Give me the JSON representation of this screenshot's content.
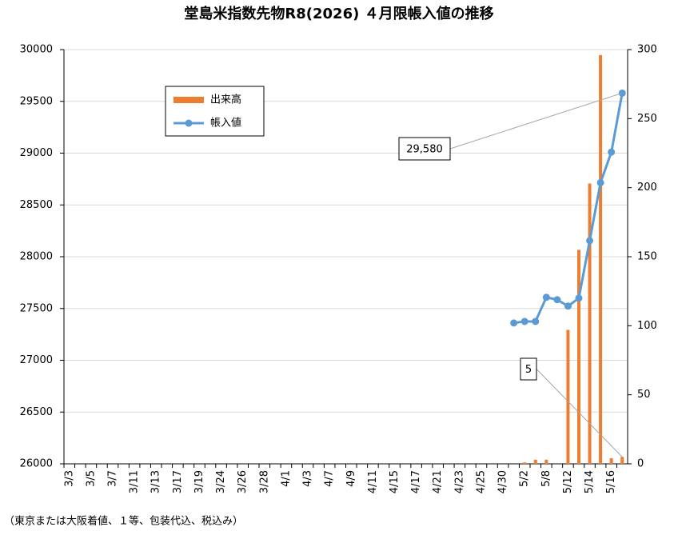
{
  "chart_data": {
    "type": "bar-line",
    "title": "堂島米指数先物R8(2026) ４月限帳入値の推移",
    "footnote": "（東京または大阪着値、１等、包装代込、税込み）",
    "categories": [
      "3/3",
      null,
      "3/5",
      null,
      "3/7",
      null,
      "3/11",
      null,
      "3/13",
      null,
      "3/17",
      null,
      "3/19",
      null,
      "3/24",
      null,
      "3/26",
      null,
      "3/28",
      null,
      "4/1",
      null,
      "4/3",
      null,
      "4/7",
      null,
      "4/9",
      null,
      "4/11",
      null,
      "4/15",
      null,
      "4/17",
      null,
      "4/21",
      null,
      "4/23",
      null,
      "4/25",
      null,
      "4/30",
      null,
      "5/2",
      null,
      "5/8",
      null,
      "5/12",
      null,
      "5/14",
      null,
      "5/16",
      null
    ],
    "series": [
      {
        "name": "出来高",
        "type": "bar",
        "axis": "y2",
        "color": "#ed7d31",
        "values": [
          null,
          null,
          null,
          null,
          null,
          null,
          null,
          null,
          null,
          null,
          null,
          null,
          null,
          null,
          null,
          null,
          null,
          null,
          null,
          null,
          null,
          null,
          null,
          null,
          null,
          null,
          null,
          null,
          null,
          null,
          null,
          null,
          null,
          null,
          null,
          null,
          null,
          null,
          null,
          null,
          null,
          0,
          1,
          3,
          3,
          0,
          97,
          155,
          203,
          296,
          4,
          5
        ]
      },
      {
        "name": "帳入値",
        "type": "line",
        "axis": "y",
        "color": "#5b9bd5",
        "values": [
          null,
          null,
          null,
          null,
          null,
          null,
          null,
          null,
          null,
          null,
          null,
          null,
          null,
          null,
          null,
          null,
          null,
          null,
          null,
          null,
          null,
          null,
          null,
          null,
          null,
          null,
          null,
          null,
          null,
          null,
          null,
          null,
          null,
          null,
          null,
          null,
          null,
          null,
          null,
          null,
          null,
          27360,
          27375,
          27375,
          27608,
          27585,
          27523,
          27600,
          28155,
          28715,
          29010,
          29580
        ]
      }
    ],
    "ylim": [
      26000,
      30000
    ],
    "yticks": [
      26000,
      26500,
      27000,
      27500,
      28000,
      28500,
      29000,
      29500,
      30000
    ],
    "y2lim": [
      0,
      300
    ],
    "y2ticks": [
      0,
      50,
      100,
      150,
      200,
      250,
      300
    ],
    "grid": true,
    "legend": "upper left",
    "annotations": [
      {
        "text": "29,580",
        "series": 1,
        "index": 51
      },
      {
        "text": "5",
        "series": 0,
        "index": 51
      }
    ]
  }
}
